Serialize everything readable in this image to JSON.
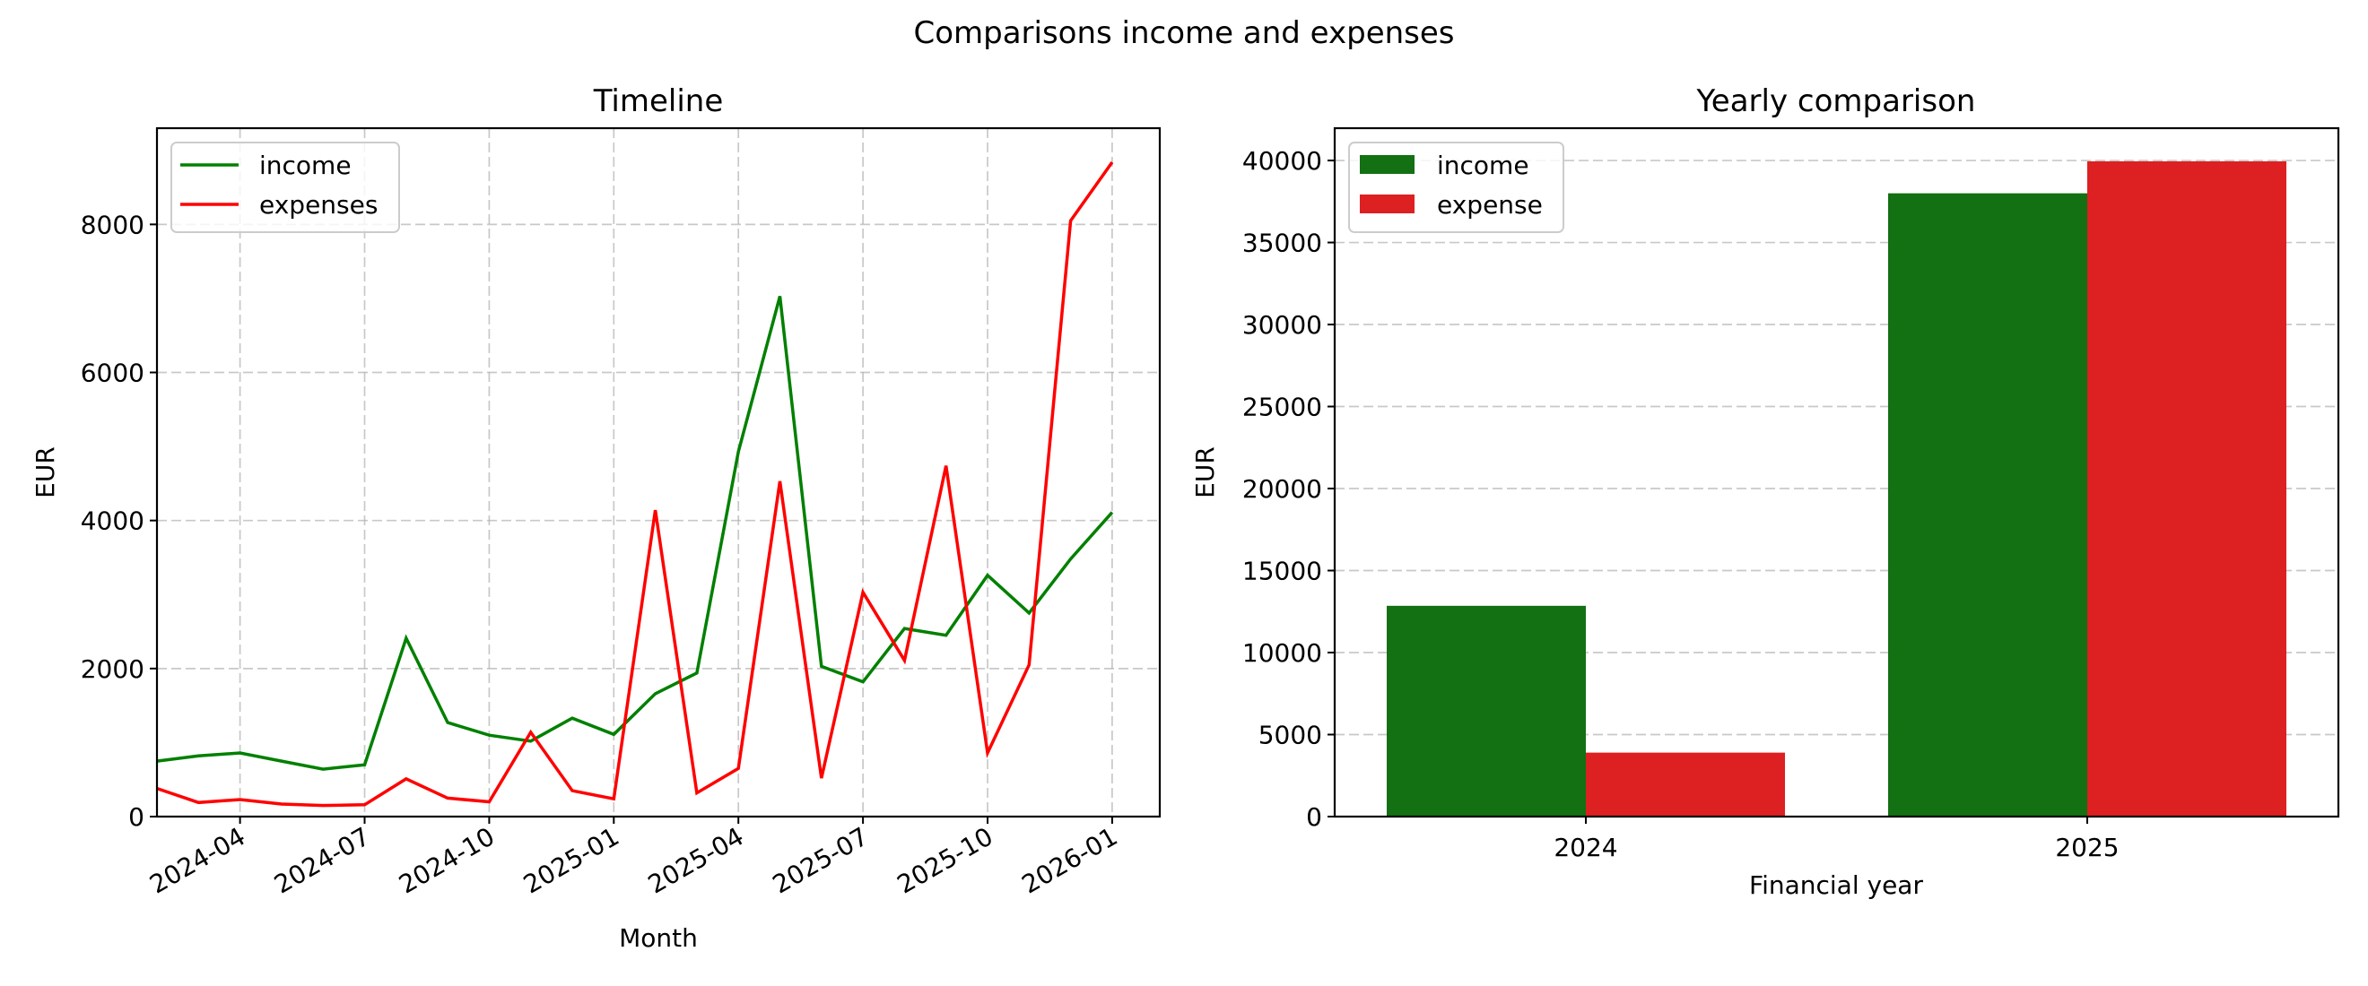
{
  "figure": {
    "suptitle": "Comparisons income and expenses"
  },
  "chart_data": [
    {
      "type": "line",
      "title": "Timeline",
      "xlabel": "Month",
      "ylabel": "EUR",
      "ylim": [
        0,
        9300
      ],
      "yticks": [
        0,
        2000,
        4000,
        6000,
        8000
      ],
      "xtick_labels": [
        "2024-04",
        "2024-07",
        "2024-10",
        "2025-01",
        "2025-04",
        "2025-07",
        "2025-10",
        "2026-01"
      ],
      "grid": true,
      "legend_position": "upper left",
      "x": [
        "2024-02",
        "2024-03",
        "2024-04",
        "2024-05",
        "2024-06",
        "2024-07",
        "2024-08",
        "2024-09",
        "2024-10",
        "2024-11",
        "2024-12",
        "2025-01",
        "2025-02",
        "2025-03",
        "2025-04",
        "2025-05",
        "2025-06",
        "2025-07",
        "2025-08",
        "2025-09",
        "2025-10",
        "2025-11",
        "2025-12",
        "2026-01"
      ],
      "series": [
        {
          "name": "income",
          "color": "#008000",
          "values": [
            750,
            820,
            860,
            750,
            640,
            700,
            2410,
            1270,
            1100,
            1020,
            1330,
            1110,
            1660,
            1940,
            4930,
            7030,
            2030,
            1820,
            2540,
            2450,
            3260,
            2750,
            3480,
            4110
          ]
        },
        {
          "name": "expenses",
          "color": "#ff0000",
          "values": [
            380,
            190,
            230,
            170,
            150,
            160,
            510,
            250,
            200,
            1140,
            350,
            240,
            4140,
            320,
            650,
            4530,
            520,
            3030,
            2110,
            4740,
            860,
            2050,
            8050,
            8840
          ]
        }
      ]
    },
    {
      "type": "bar",
      "title": "Yearly comparison",
      "xlabel": "Financial year",
      "ylabel": "EUR",
      "ylim": [
        0,
        41970
      ],
      "yticks": [
        0,
        5000,
        10000,
        15000,
        20000,
        25000,
        30000,
        35000,
        40000
      ],
      "categories": [
        "2024",
        "2025"
      ],
      "grid": "y",
      "legend_position": "upper left",
      "series": [
        {
          "name": "income",
          "color": "#137013",
          "values": [
            12850,
            38000
          ]
        },
        {
          "name": "expense",
          "color": "#dd2022",
          "values": [
            3900,
            39950
          ]
        }
      ]
    }
  ]
}
